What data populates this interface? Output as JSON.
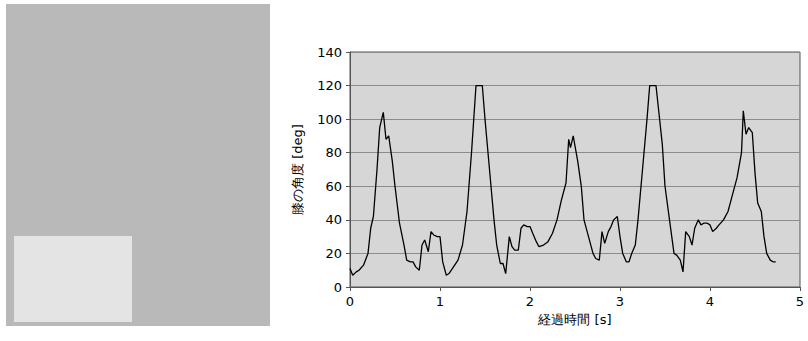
{
  "chart_data": {
    "type": "line",
    "x_label": "経過時間 [s]",
    "y_label": "膝の角度 [deg]",
    "color": "#000000",
    "grid": true,
    "xlim": [
      0,
      5
    ],
    "xticks": [
      0,
      1,
      2,
      3,
      4,
      5
    ],
    "ylim": [
      0,
      140
    ],
    "yticks": [
      0,
      20,
      40,
      60,
      80,
      100,
      120,
      140
    ],
    "x": [
      0,
      0.03,
      0.07,
      0.1,
      0.15,
      0.2,
      0.23,
      0.26,
      0.3,
      0.33,
      0.37,
      0.4,
      0.43,
      0.47,
      0.5,
      0.55,
      0.6,
      0.63,
      0.67,
      0.7,
      0.73,
      0.77,
      0.8,
      0.83,
      0.87,
      0.9,
      0.93,
      0.97,
      1.0,
      1.03,
      1.07,
      1.1,
      1.15,
      1.2,
      1.25,
      1.3,
      1.35,
      1.4,
      1.47,
      1.5,
      1.55,
      1.6,
      1.63,
      1.67,
      1.7,
      1.73,
      1.77,
      1.8,
      1.83,
      1.87,
      1.9,
      1.93,
      1.97,
      2.0,
      2.03,
      2.07,
      2.1,
      2.15,
      2.2,
      2.25,
      2.3,
      2.35,
      2.4,
      2.43,
      2.45,
      2.48,
      2.53,
      2.57,
      2.6,
      2.65,
      2.7,
      2.73,
      2.77,
      2.8,
      2.83,
      2.87,
      2.9,
      2.93,
      2.97,
      3.0,
      3.03,
      3.07,
      3.1,
      3.13,
      3.17,
      3.2,
      3.25,
      3.3,
      3.33,
      3.4,
      3.43,
      3.47,
      3.5,
      3.55,
      3.6,
      3.63,
      3.67,
      3.7,
      3.73,
      3.77,
      3.8,
      3.83,
      3.87,
      3.9,
      3.93,
      3.97,
      4.0,
      4.03,
      4.07,
      4.1,
      4.15,
      4.2,
      4.25,
      4.3,
      4.35,
      4.37,
      4.4,
      4.43,
      4.47,
      4.5,
      4.53,
      4.57,
      4.6,
      4.63,
      4.67,
      4.7,
      4.73
    ],
    "values": [
      11,
      7,
      9,
      10,
      13,
      20,
      35,
      42,
      70,
      95,
      104,
      88,
      90,
      75,
      60,
      38,
      25,
      16,
      15,
      15,
      12,
      10,
      25,
      28,
      21,
      33,
      31,
      30,
      30,
      15,
      7,
      8,
      12,
      16,
      25,
      45,
      80,
      120,
      120,
      100,
      70,
      40,
      25,
      14,
      14,
      8,
      30,
      24,
      22,
      22,
      35,
      37,
      36,
      36,
      32,
      27,
      24,
      25,
      27,
      32,
      40,
      52,
      62,
      88,
      83,
      90,
      75,
      60,
      40,
      30,
      20,
      17,
      16,
      33,
      26,
      33,
      36,
      40,
      42,
      30,
      20,
      15,
      15,
      20,
      25,
      40,
      70,
      100,
      120,
      120,
      105,
      85,
      60,
      40,
      20,
      19,
      16,
      9,
      33,
      30,
      25,
      35,
      40,
      37,
      38,
      38,
      37,
      33,
      35,
      37,
      40,
      45,
      55,
      65,
      80,
      105,
      91,
      95,
      92,
      68,
      50,
      45,
      30,
      20,
      16,
      15,
      15
    ]
  }
}
